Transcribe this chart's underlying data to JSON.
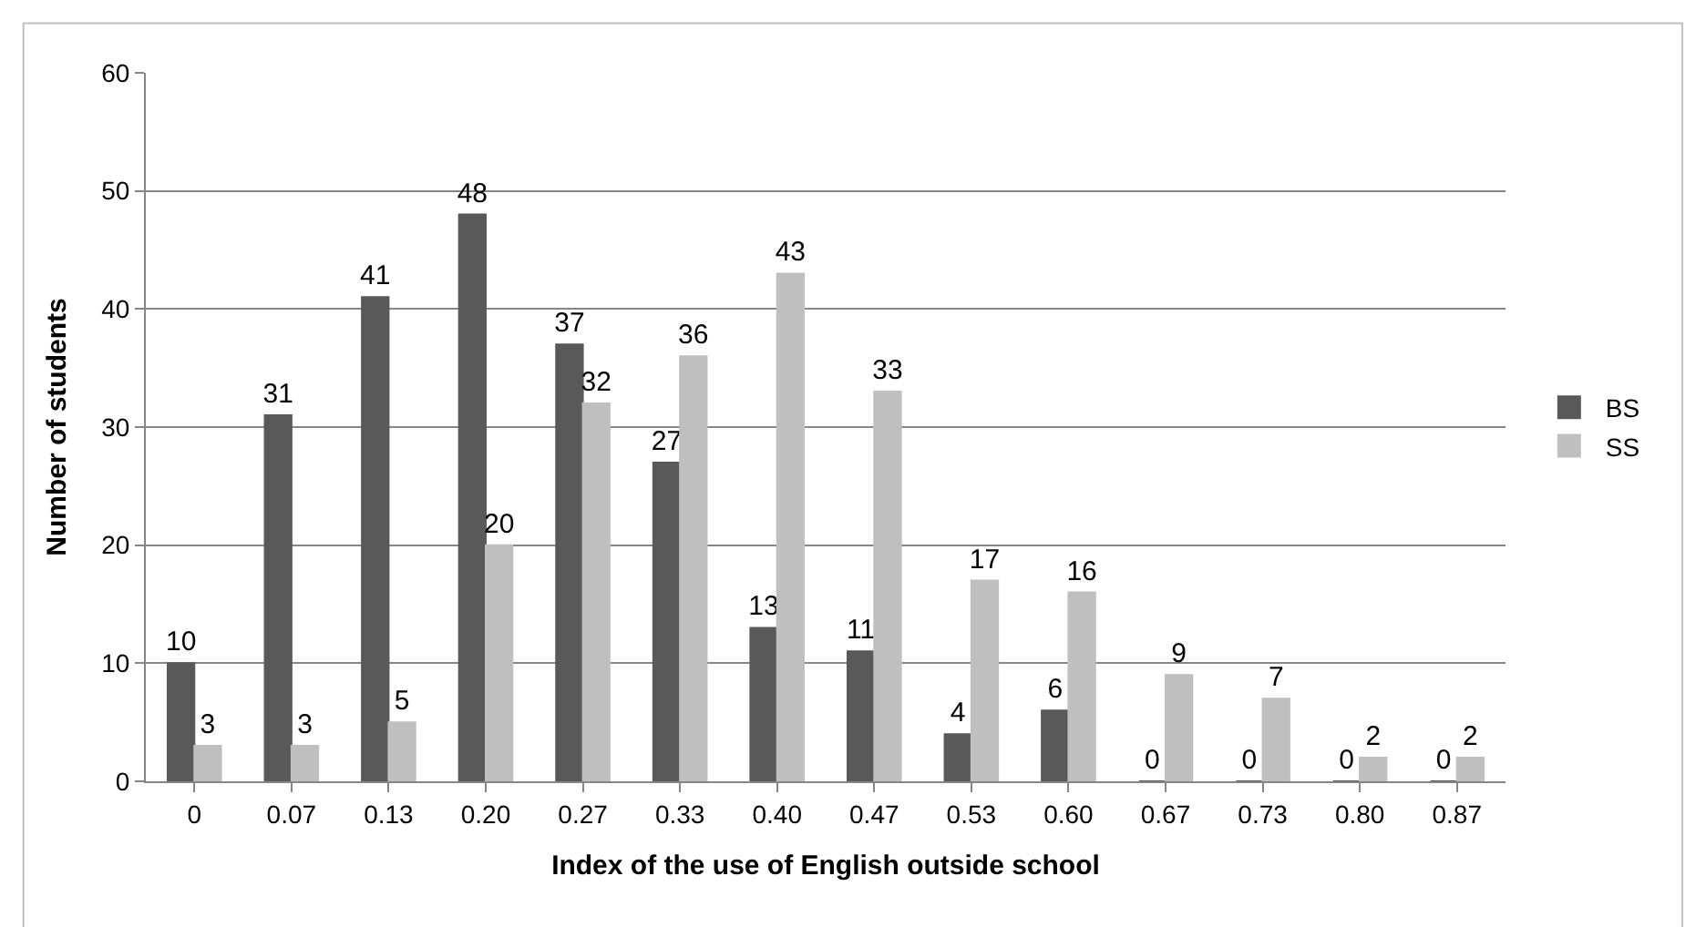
{
  "chart_data": {
    "type": "bar",
    "xlabel": "Index of the use of English outside school",
    "ylabel": "Number of students",
    "categories": [
      "0",
      "0.07",
      "0.13",
      "0.20",
      "0.27",
      "0.33",
      "0.40",
      "0.47",
      "0.53",
      "0.60",
      "0.67",
      "0.73",
      "0.80",
      "0.87"
    ],
    "series": [
      {
        "name": "BS",
        "color": "#595959",
        "values": [
          10,
          31,
          41,
          48,
          37,
          27,
          13,
          11,
          4,
          6,
          0,
          0,
          0,
          0
        ]
      },
      {
        "name": "SS",
        "color": "#bfbfbf",
        "values": [
          3,
          3,
          5,
          20,
          32,
          36,
          43,
          33,
          17,
          16,
          9,
          7,
          2,
          2
        ]
      }
    ],
    "ylim": [
      0,
      60
    ],
    "yticks": [
      0,
      10,
      20,
      30,
      40,
      50,
      60
    ],
    "grid": "y",
    "legend": "right",
    "data_labels": true
  }
}
